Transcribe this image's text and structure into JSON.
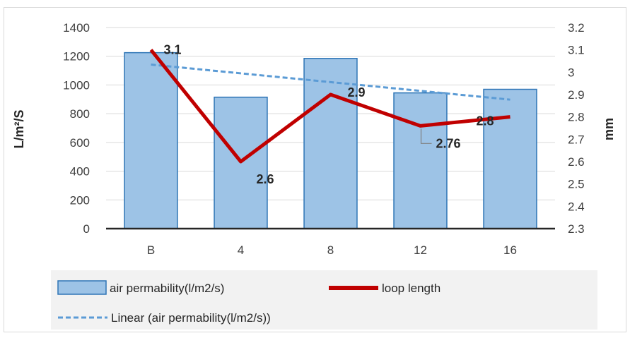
{
  "chart_data": {
    "type": "bar",
    "title": "",
    "categories": [
      "B",
      "4",
      "8",
      "12",
      "16"
    ],
    "series": [
      {
        "name": "air permability(l/m2/s)",
        "type": "bar",
        "axis": "left",
        "values": [
          1225,
          915,
          1185,
          945,
          970
        ],
        "color": "#9dc3e6",
        "border_color": "#2e75b6"
      },
      {
        "name": "loop length",
        "type": "line",
        "axis": "right",
        "values": [
          3.1,
          2.6,
          2.9,
          2.76,
          2.8
        ],
        "data_labels": [
          "3.1",
          "2.6",
          "2.9",
          "2.76",
          "2.8"
        ],
        "color": "#c00000"
      },
      {
        "name": "Linear (air permability(l/m2/s))",
        "type": "trendline",
        "axis": "left",
        "values": [
          1142,
          1081,
          1020,
          959,
          898
        ],
        "color": "#5b9bd5"
      }
    ],
    "y_left": {
      "label": "L/m²/S",
      "ylim": [
        0,
        1400
      ],
      "ticks": [
        "0",
        "200",
        "400",
        "600",
        "800",
        "1000",
        "1200",
        "1400"
      ]
    },
    "y_right": {
      "label": "mm",
      "ylim": [
        2.3,
        3.2
      ],
      "ticks": [
        "2.3",
        "2.4",
        "2.5",
        "2.6",
        "2.7",
        "2.8",
        "2.9",
        "3",
        "3.1",
        "3.2"
      ]
    },
    "grid": true,
    "legend_position": "bottom"
  }
}
